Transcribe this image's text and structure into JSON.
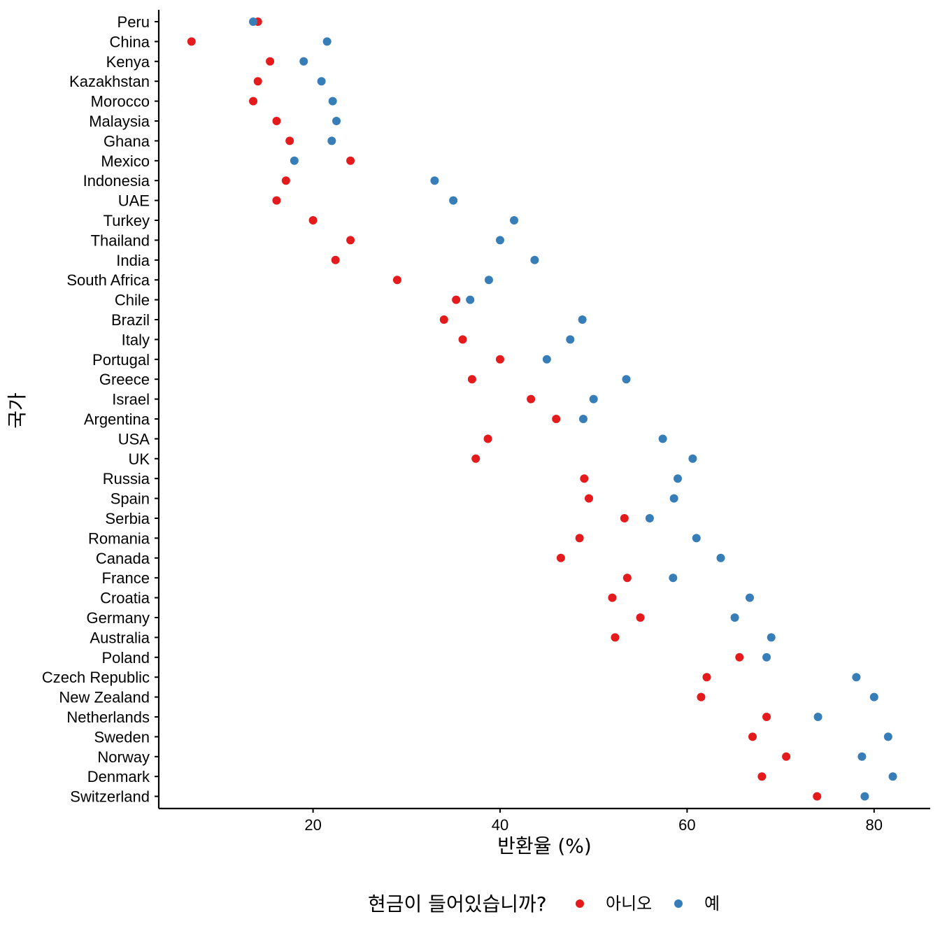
{
  "chart_data": {
    "type": "scatter",
    "xlabel": "반환율 (%)",
    "ylabel": "국가",
    "x_ticks": [
      20,
      40,
      60,
      80
    ],
    "xlim": [
      3.5,
      86
    ],
    "grid": false,
    "legend": {
      "title": "현금이 들어있습니까?",
      "position": "bottom",
      "entries": [
        {
          "label": "아니오",
          "color": "#E41A1C"
        },
        {
          "label": "예",
          "color": "#377EB8"
        }
      ]
    },
    "categories": [
      "Peru",
      "China",
      "Kenya",
      "Kazakhstan",
      "Morocco",
      "Malaysia",
      "Ghana",
      "Mexico",
      "Indonesia",
      "UAE",
      "Turkey",
      "Thailand",
      "India",
      "South Africa",
      "Chile",
      "Brazil",
      "Italy",
      "Portugal",
      "Greece",
      "Israel",
      "Argentina",
      "USA",
      "UK",
      "Russia",
      "Spain",
      "Serbia",
      "Romania",
      "Canada",
      "France",
      "Croatia",
      "Germany",
      "Australia",
      "Poland",
      "Czech Republic",
      "New Zealand",
      "Netherlands",
      "Sweden",
      "Norway",
      "Denmark",
      "Switzerland"
    ],
    "series": [
      {
        "name": "아니오",
        "color": "#E41A1C",
        "values": [
          14.1,
          7.0,
          15.4,
          14.1,
          13.6,
          16.1,
          17.5,
          24.0,
          17.1,
          16.1,
          20.0,
          24.0,
          22.4,
          29.0,
          35.3,
          34.0,
          36.0,
          40.0,
          37.0,
          43.3,
          46.0,
          38.7,
          37.4,
          49.0,
          49.5,
          53.3,
          48.5,
          46.5,
          53.6,
          52.0,
          55.0,
          52.3,
          65.6,
          62.1,
          61.5,
          68.5,
          67.0,
          70.6,
          68.0,
          73.9
        ]
      },
      {
        "name": "예",
        "color": "#377EB8",
        "values": [
          13.6,
          21.5,
          19.0,
          20.9,
          22.1,
          22.5,
          22.0,
          18.0,
          33.0,
          35.0,
          41.5,
          40.0,
          43.7,
          38.8,
          36.8,
          48.8,
          47.5,
          45.0,
          53.5,
          50.0,
          48.9,
          57.4,
          60.6,
          59.0,
          58.6,
          56.0,
          61.0,
          63.6,
          58.5,
          66.7,
          65.1,
          69.0,
          68.5,
          78.1,
          80.0,
          74.0,
          81.5,
          78.7,
          82.0,
          79.0
        ]
      }
    ]
  }
}
